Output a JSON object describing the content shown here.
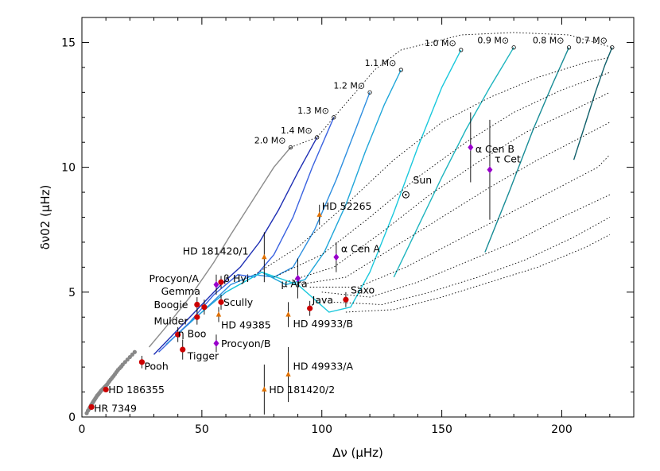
{
  "chart_data": {
    "type": "scatter",
    "xlabel": "Δν (μHz)",
    "ylabel": "δν02 (μHz)",
    "xlim": [
      0,
      230
    ],
    "ylim": [
      0,
      16
    ],
    "xticks": [
      0,
      50,
      100,
      150,
      200
    ],
    "yticks": [
      0,
      5,
      10,
      15
    ],
    "grid": false,
    "mass_tracks": [
      {
        "label": "2.0 M⊙",
        "color": "#8c8c8c",
        "x": [
          28,
          35,
          45,
          55,
          62,
          68,
          74,
          80,
          87
        ],
        "y": [
          2.8,
          3.6,
          4.8,
          6.2,
          7.3,
          8.2,
          9.1,
          10.0,
          10.8
        ]
      },
      {
        "label": "1.4 M⊙",
        "color": "#1e2fb4",
        "x": [
          30,
          40,
          50,
          58,
          66,
          74,
          82,
          90,
          98
        ],
        "y": [
          2.5,
          3.5,
          4.5,
          5.3,
          6.0,
          7.0,
          8.3,
          9.8,
          11.2
        ]
      },
      {
        "label": "1.3 M⊙",
        "color": "#3b63e0",
        "x": [
          32,
          45,
          55,
          65,
          72,
          80,
          88,
          96,
          105
        ],
        "y": [
          2.6,
          3.8,
          4.9,
          5.7,
          5.6,
          6.5,
          8.0,
          10.0,
          12.0
        ]
      },
      {
        "label": "1.2 M⊙",
        "color": "#2f8fe0",
        "x": [
          35,
          50,
          62,
          72,
          80,
          88,
          97,
          106,
          114,
          120
        ],
        "y": [
          2.9,
          4.2,
          5.3,
          5.7,
          5.6,
          6.0,
          7.5,
          9.5,
          11.5,
          13.0
        ]
      },
      {
        "label": "1.1 M⊙",
        "color": "#1fa6d9",
        "x": [
          45,
          60,
          75,
          85,
          93,
          101,
          110,
          118,
          126,
          133
        ],
        "y": [
          3.8,
          5.0,
          5.8,
          5.3,
          5.5,
          6.6,
          8.5,
          10.6,
          12.5,
          13.9
        ]
      },
      {
        "label": "1.0 M⊙",
        "color": "#19c8dc",
        "x": [
          60,
          75,
          90,
          103,
          112,
          120,
          130,
          140,
          150,
          158
        ],
        "y": [
          5.0,
          5.8,
          5.3,
          4.2,
          4.4,
          5.8,
          8.2,
          10.8,
          13.2,
          14.7
        ]
      },
      {
        "label": "0.9 M⊙",
        "color": "#1fb5bf",
        "x": [
          130,
          140,
          150,
          160,
          170,
          180
        ],
        "y": [
          5.6,
          7.6,
          9.6,
          11.5,
          13.2,
          14.8
        ]
      },
      {
        "label": "0.8 M⊙",
        "color": "#178c96",
        "x": [
          168,
          178,
          188,
          196,
          203
        ],
        "y": [
          6.6,
          9.0,
          11.5,
          13.3,
          14.8
        ]
      },
      {
        "label": "0.7 M⊙",
        "color": "#0f5f6a",
        "x": [
          205,
          210,
          214,
          218,
          221
        ],
        "y": [
          10.3,
          11.8,
          13.0,
          14.1,
          14.8
        ]
      }
    ],
    "isochrones": [
      {
        "x": [
          87,
          98,
          105,
          114,
          122,
          133,
          158,
          180,
          203,
          221
        ],
        "y": [
          10.8,
          11.2,
          12.0,
          13.0,
          13.9,
          14.7,
          15.3,
          15.4,
          15.3,
          14.8
        ]
      },
      {
        "x": [
          72,
          90,
          110,
          130,
          150,
          170,
          190,
          210,
          220
        ],
        "y": [
          5.7,
          6.8,
          8.5,
          10.3,
          11.8,
          12.8,
          13.6,
          14.2,
          14.4
        ]
      },
      {
        "x": [
          80,
          100,
          120,
          140,
          160,
          180,
          200,
          220
        ],
        "y": [
          5.6,
          6.5,
          8.0,
          9.6,
          11.0,
          12.2,
          13.1,
          13.8
        ]
      },
      {
        "x": [
          85,
          105,
          125,
          145,
          165,
          185,
          205,
          220
        ],
        "y": [
          5.4,
          6.0,
          7.4,
          8.9,
          10.2,
          11.4,
          12.3,
          13.0
        ]
      },
      {
        "x": [
          90,
          110,
          130,
          150,
          170,
          190,
          210,
          220
        ],
        "y": [
          5.3,
          5.6,
          6.8,
          8.0,
          9.2,
          10.3,
          11.3,
          11.8
        ]
      },
      {
        "x": [
          95,
          115,
          135,
          155,
          175,
          195,
          215,
          220
        ],
        "y": [
          5.2,
          5.2,
          6.0,
          7.0,
          8.0,
          9.0,
          10.0,
          10.5
        ]
      },
      {
        "x": [
          100,
          120,
          140,
          160,
          180,
          200,
          220
        ],
        "y": [
          5.0,
          4.8,
          5.4,
          6.2,
          7.0,
          8.0,
          8.9
        ]
      },
      {
        "x": [
          105,
          125,
          145,
          165,
          185,
          205,
          220
        ],
        "y": [
          4.6,
          4.5,
          5.0,
          5.6,
          6.3,
          7.2,
          8.0
        ]
      },
      {
        "x": [
          110,
          130,
          150,
          170,
          190,
          210,
          220
        ],
        "y": [
          4.2,
          4.3,
          4.8,
          5.4,
          6.0,
          6.8,
          7.3
        ]
      }
    ],
    "giant_points": {
      "color": "#888888",
      "x": [
        2,
        2.5,
        3,
        3.3,
        3.7,
        4,
        4.4,
        4.8,
        5.2,
        5.6,
        6,
        6.4,
        6.8,
        7.2,
        7.6,
        8,
        8.5,
        9,
        9.5,
        10,
        10.5,
        11,
        11.5,
        12,
        12.6,
        13.2,
        13.8,
        14.4,
        15,
        15.7,
        16.4,
        17,
        18,
        19,
        20,
        21,
        22
      ],
      "y": [
        0.15,
        0.25,
        0.32,
        0.38,
        0.45,
        0.5,
        0.56,
        0.62,
        0.68,
        0.74,
        0.8,
        0.86,
        0.9,
        0.95,
        1.0,
        1.05,
        1.1,
        1.15,
        1.2,
        1.25,
        1.3,
        1.37,
        1.44,
        1.5,
        1.57,
        1.64,
        1.72,
        1.8,
        1.88,
        1.95,
        2.02,
        2.1,
        2.2,
        2.3,
        2.4,
        2.5,
        2.6
      ]
    },
    "stars": [
      {
        "name": "HR 7349",
        "x": 4,
        "y": 0.4,
        "marker": "circle",
        "color": "#cc0000",
        "err": 0.1,
        "lx": 5,
        "ly": 0.2
      },
      {
        "name": "HD 186355",
        "x": 10,
        "y": 1.1,
        "marker": "circle",
        "color": "#cc0000",
        "err": 0.1,
        "lx": 11,
        "ly": 0.95
      },
      {
        "name": "Pooh",
        "x": 25,
        "y": 2.2,
        "marker": "circle",
        "color": "#cc0000",
        "err": 0.25,
        "lx": 26,
        "ly": 1.9
      },
      {
        "name": "Tigger",
        "x": 42,
        "y": 2.7,
        "marker": "circle",
        "color": "#cc0000",
        "err": 0.4,
        "lx": 44,
        "ly": 2.3
      },
      {
        "name": "η Boo",
        "x": 40,
        "y": 3.3,
        "marker": "circle",
        "color": "#cc0000",
        "err": 0.3,
        "lx": 40,
        "ly": 3.2
      },
      {
        "name": "Procyon/B",
        "x": 56,
        "y": 2.95,
        "marker": "diamond",
        "color": "#9900cc",
        "err": 0.35,
        "lx": 58,
        "ly": 2.8
      },
      {
        "name": "Mulder",
        "x": 48,
        "y": 4.0,
        "marker": "circle",
        "color": "#cc0000",
        "err": 0.3,
        "lx": 30,
        "ly": 3.7
      },
      {
        "name": "Boogie",
        "x": 48,
        "y": 4.5,
        "marker": "circle",
        "color": "#cc0000",
        "err": 0.3,
        "lx": 30,
        "ly": 4.35
      },
      {
        "name": "Gemma",
        "x": 51,
        "y": 4.4,
        "marker": "circle",
        "color": "#cc0000",
        "err": 0.3,
        "lx": 33,
        "ly": 4.9
      },
      {
        "name": "Scully",
        "x": 58,
        "y": 4.6,
        "marker": "circle",
        "color": "#cc0000",
        "err": 0.3,
        "lx": 59,
        "ly": 4.45
      },
      {
        "name": "HD 49385",
        "x": 57,
        "y": 4.1,
        "marker": "triangle",
        "color": "#e07000",
        "err": 0.3,
        "lx": 58,
        "ly": 3.55
      },
      {
        "name": "Procyon/A",
        "x": 56,
        "y": 5.3,
        "marker": "diamond",
        "color": "#9900cc",
        "err": 0.4,
        "lx": 28,
        "ly": 5.4
      },
      {
        "name": "β Hyi",
        "x": 58,
        "y": 5.4,
        "marker": "circle",
        "color": "#cc0000",
        "err": 0.25,
        "lx": 59,
        "ly": 5.4
      },
      {
        "name": "HD 181420/1",
        "x": 76,
        "y": 6.4,
        "marker": "triangle",
        "color": "#e07000",
        "err": 1.0,
        "lx": 42,
        "ly": 6.5
      },
      {
        "name": "HD 52265",
        "x": 99,
        "y": 8.1,
        "marker": "triangle",
        "color": "#e07000",
        "err": 0.4,
        "lx": 100,
        "ly": 8.3
      },
      {
        "name": "μ Ara",
        "x": 90,
        "y": 5.55,
        "marker": "diamond",
        "color": "#9900cc",
        "err": 0.8,
        "lx": 83,
        "ly": 5.2
      },
      {
        "name": "α Cen A",
        "x": 106,
        "y": 6.4,
        "marker": "diamond",
        "color": "#9900cc",
        "err": 0.6,
        "lx": 108,
        "ly": 6.6
      },
      {
        "name": "Java",
        "x": 95,
        "y": 4.35,
        "marker": "circle",
        "color": "#cc0000",
        "err": 0.3,
        "lx": 96,
        "ly": 4.55
      },
      {
        "name": "Saxo",
        "x": 110,
        "y": 4.7,
        "marker": "circle",
        "color": "#cc0000",
        "err": 0.3,
        "lx": 112,
        "ly": 4.95
      },
      {
        "name": "HD 49933/B",
        "x": 86,
        "y": 4.1,
        "marker": "triangle",
        "color": "#e07000",
        "err": 0.5,
        "lx": 88,
        "ly": 3.6
      },
      {
        "name": "HD 49933/A",
        "x": 86,
        "y": 1.7,
        "marker": "triangle",
        "color": "#e07000",
        "err": 1.1,
        "lx": 88,
        "ly": 1.9
      },
      {
        "name": "HD 181420/2",
        "x": 76,
        "y": 1.1,
        "marker": "triangle",
        "color": "#e07000",
        "err": 1.0,
        "lx": 78,
        "ly": 0.95
      },
      {
        "name": "Sun",
        "x": 135,
        "y": 8.9,
        "marker": "sun",
        "color": "#000000",
        "err": 0,
        "lx": 138,
        "ly": 9.35
      },
      {
        "name": "α Cen B",
        "x": 162,
        "y": 10.8,
        "marker": "diamond",
        "color": "#9900cc",
        "err": 1.4,
        "lx": 164,
        "ly": 10.6
      },
      {
        "name": "τ Cet",
        "x": 170,
        "y": 9.9,
        "marker": "diamond",
        "color": "#9900cc",
        "err": 2.0,
        "lx": 172,
        "ly": 10.2
      }
    ]
  }
}
